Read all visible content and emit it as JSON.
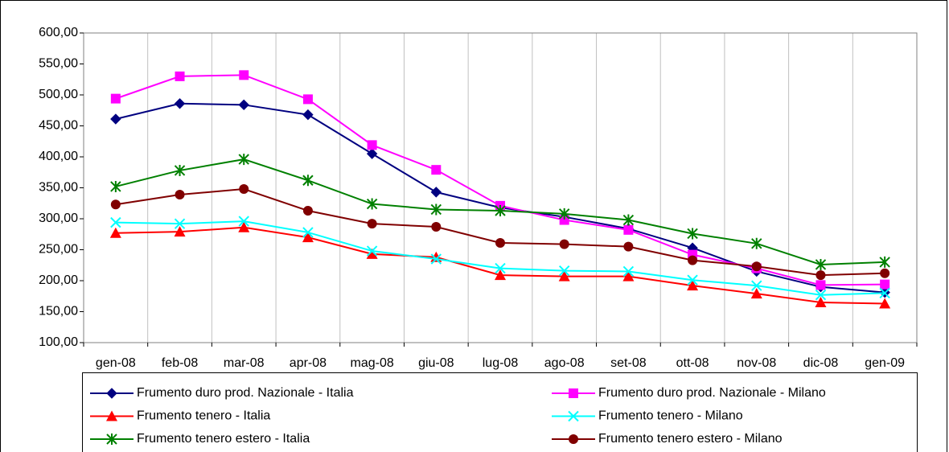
{
  "chart_data": {
    "type": "line",
    "categories": [
      "gen-08",
      "feb-08",
      "mar-08",
      "apr-08",
      "mag-08",
      "giu-08",
      "lug-08",
      "ago-08",
      "set-08",
      "ott-08",
      "nov-08",
      "dic-08",
      "gen-09"
    ],
    "series": [
      {
        "name": "Frumento duro prod. Nazionale - Italia",
        "color": "#000080",
        "marker": "diamond",
        "values": [
          461,
          486,
          484,
          468,
          405,
          343,
          318,
          303,
          284,
          253,
          215,
          190,
          181
        ]
      },
      {
        "name": "Frumento duro prod. Nazionale - Milano",
        "color": "#ff00ff",
        "marker": "square",
        "values": [
          494,
          530,
          532,
          493,
          419,
          379,
          321,
          298,
          282,
          242,
          220,
          193,
          194
        ]
      },
      {
        "name": "Frumento tenero - Italia",
        "color": "#ff0000",
        "marker": "triangle",
        "values": [
          277,
          279,
          286,
          270,
          243,
          238,
          209,
          207,
          207,
          192,
          179,
          165,
          163
        ]
      },
      {
        "name": "Frumento tenero - Milano",
        "color": "#00ffff",
        "marker": "x",
        "values": [
          294,
          292,
          296,
          278,
          248,
          235,
          220,
          216,
          215,
          201,
          192,
          177,
          180
        ]
      },
      {
        "name": "Frumento tenero estero - Italia",
        "color": "#008000",
        "marker": "star",
        "values": [
          352,
          378,
          396,
          362,
          324,
          315,
          313,
          308,
          298,
          276,
          260,
          226,
          230
        ]
      },
      {
        "name": "Frumento tenero estero - Milano",
        "color": "#800000",
        "marker": "circle",
        "values": [
          323,
          339,
          348,
          313,
          292,
          287,
          261,
          259,
          255,
          233,
          223,
          209,
          212
        ]
      }
    ],
    "ylim": [
      100,
      600
    ],
    "yticks": [
      {
        "value": 100,
        "label": "100,00"
      },
      {
        "value": 150,
        "label": "150,00"
      },
      {
        "value": 200,
        "label": "200,00"
      },
      {
        "value": 250,
        "label": "250,00"
      },
      {
        "value": 300,
        "label": "300,00"
      },
      {
        "value": 350,
        "label": "350,00"
      },
      {
        "value": 400,
        "label": "400,00"
      },
      {
        "value": 450,
        "label": "450,00"
      },
      {
        "value": 500,
        "label": "500,00"
      },
      {
        "value": 550,
        "label": "550,00"
      },
      {
        "value": 600,
        "label": "600,00"
      }
    ],
    "grid": "x"
  }
}
